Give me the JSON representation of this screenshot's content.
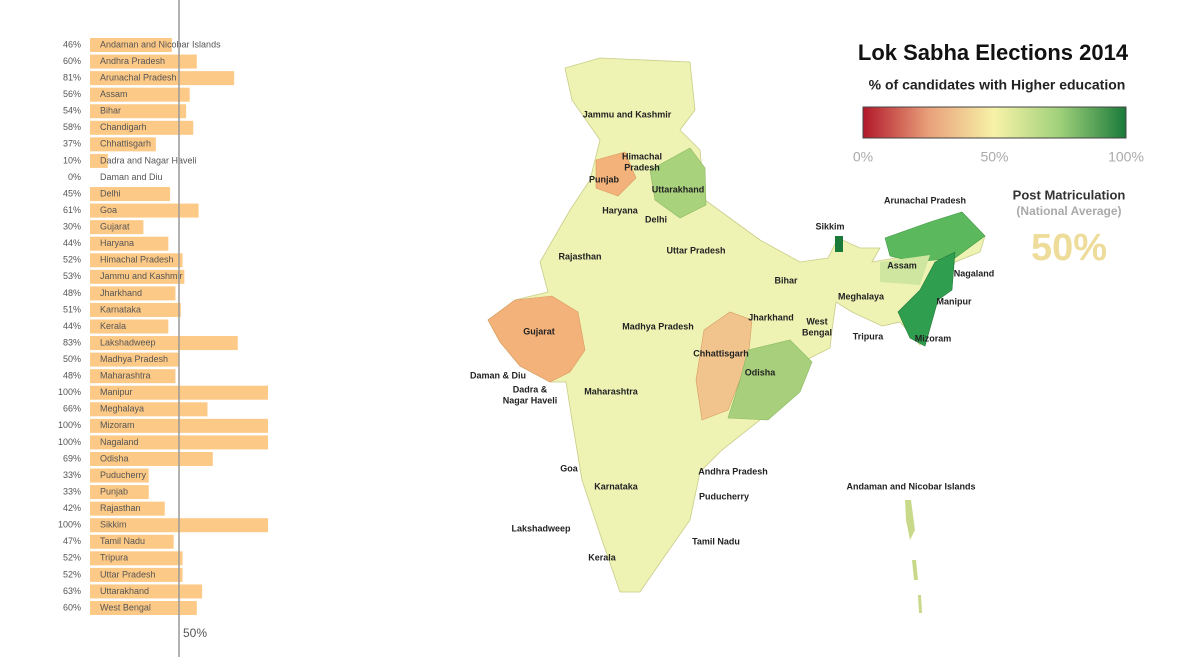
{
  "chart_data": {
    "type": "bar",
    "orientation": "horizontal",
    "categories": [
      "Andaman and Nicobar Islands",
      "Andhra Pradesh",
      "Arunachal Pradesh",
      "Assam",
      "Bihar",
      "Chandigarh",
      "Chhattisgarh",
      "Dadra and Nagar Haveli",
      "Daman and Diu",
      "Delhi",
      "Goa",
      "Gujarat",
      "Haryana",
      "Himachal Pradesh",
      "Jammu and Kashmir",
      "Jharkhand",
      "Karnataka",
      "Kerala",
      "Lakshadweep",
      "Madhya Pradesh",
      "Maharashtra",
      "Manipur",
      "Meghalaya",
      "Mizoram",
      "Nagaland",
      "Odisha",
      "Puducherry",
      "Punjab",
      "Rajasthan",
      "Sikkim",
      "Tamil Nadu",
      "Tripura",
      "Uttar Pradesh",
      "Uttarakhand",
      "West Bengal"
    ],
    "values": [
      46,
      60,
      81,
      56,
      54,
      58,
      37,
      10,
      0,
      45,
      61,
      30,
      44,
      52,
      53,
      48,
      51,
      44,
      83,
      50,
      48,
      100,
      66,
      100,
      100,
      69,
      33,
      33,
      42,
      100,
      47,
      52,
      52,
      63,
      60
    ],
    "value_labels": [
      "46%",
      "60%",
      "81%",
      "56%",
      "54%",
      "58%",
      "37%",
      "10%",
      "0%",
      "45%",
      "61%",
      "30%",
      "44%",
      "52%",
      "53%",
      "48%",
      "51%",
      "44%",
      "83%",
      "50%",
      "48%",
      "100%",
      "66%",
      "100%",
      "100%",
      "69%",
      "33%",
      "33%",
      "42%",
      "100%",
      "47%",
      "52%",
      "52%",
      "63%",
      "60%"
    ],
    "color": "#fdc986",
    "xlim": [
      0,
      100
    ],
    "reference_line": {
      "value": 50,
      "label": "50%"
    }
  },
  "map": {
    "title": "Lok Sabha Elections 2014",
    "subtitle": "% of candidates with Higher education",
    "scale_ticks": [
      {
        "value": 0,
        "label": "0%"
      },
      {
        "value": 50,
        "label": "50%"
      },
      {
        "value": 100,
        "label": "100%"
      }
    ],
    "average_title": "Post Matriculation",
    "average_subtitle": "(National Average)",
    "average_value": {
      "value": 50,
      "label": "50%"
    },
    "labels": [
      [
        "Jammu and Kashmir"
      ],
      [
        "Himachal",
        "Pradesh"
      ],
      [
        "Punjab"
      ],
      [
        "Uttarakhand"
      ],
      [
        "Haryana"
      ],
      [
        "Delhi"
      ],
      [
        "Sikkim"
      ],
      [
        "Arunachal Pradesh"
      ],
      [
        "Rajasthan"
      ],
      [
        "Uttar Pradesh"
      ],
      [
        "Assam"
      ],
      [
        "Nagaland"
      ],
      [
        "Bihar"
      ],
      [
        "Meghalaya"
      ],
      [
        "Manipur"
      ],
      [
        "Jharkhand"
      ],
      [
        "West",
        "Bengal"
      ],
      [
        "Gujarat"
      ],
      [
        "Madhya Pradesh"
      ],
      [
        "Tripura"
      ],
      [
        "Mizoram"
      ],
      [
        "Chhattisgarh"
      ],
      [
        "Odisha"
      ],
      [
        "Daman & Diu"
      ],
      [
        "Dadra &",
        "Nagar Haveli"
      ],
      [
        "Maharashtra"
      ],
      [
        "Goa"
      ],
      [
        "Andhra Pradesh"
      ],
      [
        "Andaman and Nicobar Islands"
      ],
      [
        "Karnataka"
      ],
      [
        "Puducherry"
      ],
      [
        "Lakshadweep"
      ],
      [
        "Tamil Nadu"
      ],
      [
        "Kerala"
      ]
    ]
  }
}
